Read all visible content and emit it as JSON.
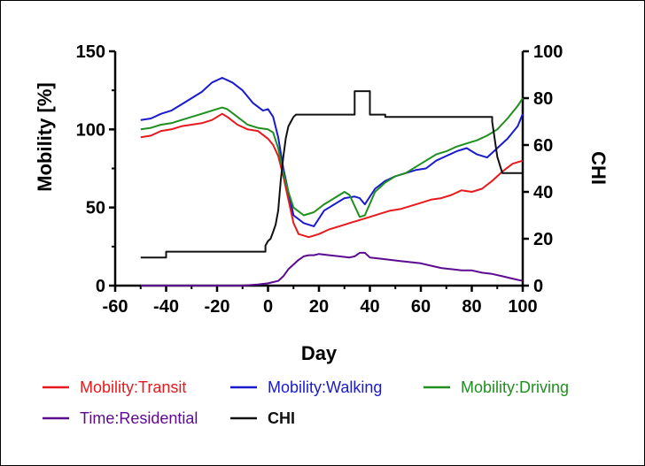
{
  "chart_data": {
    "type": "line",
    "xlabel": "Day",
    "ylabel_left": "Mobility [%]",
    "ylabel_right": "CHI",
    "xlim": [
      -60,
      100
    ],
    "ylim_left": [
      0,
      150
    ],
    "ylim_right": [
      0,
      100
    ],
    "x_ticks": [
      "-60",
      "-40",
      "-20",
      "0",
      "20",
      "40",
      "60",
      "80",
      "100"
    ],
    "y_left_ticks": [
      "0",
      "50",
      "100",
      "150"
    ],
    "y_right_ticks": [
      "0",
      "20",
      "40",
      "60",
      "80",
      "100"
    ],
    "grid": false,
    "legend_position": "bottom",
    "series": [
      {
        "name": "Mobility:Transit",
        "axis": "left",
        "color": "#e8191c",
        "x": [
          -50,
          -46,
          -42,
          -38,
          -34,
          -30,
          -26,
          -22,
          -18,
          -16,
          -12,
          -8,
          -4,
          0,
          2,
          4,
          6,
          8,
          10,
          12,
          16,
          20,
          24,
          28,
          32,
          36,
          40,
          44,
          48,
          52,
          56,
          60,
          64,
          68,
          72,
          76,
          80,
          84,
          88,
          92,
          96,
          100
        ],
        "y": [
          95,
          96,
          99,
          100,
          102,
          103,
          104,
          106,
          110,
          108,
          103,
          100,
          99,
          94,
          90,
          83,
          70,
          55,
          40,
          33,
          31,
          33,
          36,
          38,
          40,
          42,
          44,
          46,
          48,
          49,
          51,
          53,
          55,
          56,
          58,
          61,
          60,
          62,
          67,
          73,
          78,
          80
        ]
      },
      {
        "name": "Mobility:Walking",
        "axis": "left",
        "color": "#1a1acd",
        "x": [
          -50,
          -46,
          -42,
          -38,
          -34,
          -30,
          -26,
          -22,
          -18,
          -14,
          -10,
          -6,
          -2,
          0,
          2,
          4,
          6,
          8,
          10,
          14,
          18,
          22,
          26,
          30,
          34,
          36,
          38,
          42,
          46,
          50,
          54,
          58,
          62,
          66,
          70,
          74,
          78,
          82,
          86,
          90,
          94,
          98,
          100
        ],
        "y": [
          106,
          107,
          110,
          112,
          116,
          120,
          124,
          130,
          133,
          130,
          125,
          117,
          112,
          113,
          108,
          95,
          75,
          60,
          45,
          40,
          38,
          48,
          52,
          56,
          57,
          56,
          52,
          62,
          67,
          70,
          72,
          74,
          75,
          80,
          83,
          86,
          88,
          84,
          82,
          88,
          94,
          102,
          110
        ]
      },
      {
        "name": "Mobility:Driving",
        "axis": "left",
        "color": "#1f8f1f",
        "x": [
          -50,
          -46,
          -42,
          -38,
          -34,
          -30,
          -26,
          -22,
          -18,
          -16,
          -12,
          -8,
          -4,
          0,
          2,
          4,
          6,
          8,
          10,
          14,
          18,
          22,
          26,
          30,
          32,
          36,
          38,
          42,
          46,
          50,
          54,
          58,
          62,
          66,
          70,
          74,
          78,
          82,
          86,
          90,
          94,
          98,
          100
        ],
        "y": [
          100,
          101,
          103,
          104,
          106,
          108,
          110,
          112,
          114,
          113,
          108,
          103,
          101,
          100,
          98,
          88,
          72,
          60,
          50,
          45,
          47,
          52,
          56,
          60,
          58,
          44,
          45,
          60,
          66,
          70,
          72,
          76,
          80,
          84,
          86,
          89,
          91,
          93,
          96,
          100,
          107,
          115,
          120
        ]
      },
      {
        "name": "Time:Residential",
        "axis": "right",
        "color": "#5b0a91",
        "x": [
          -50,
          -10,
          -4,
          0,
          2,
          4,
          6,
          8,
          10,
          12,
          14,
          16,
          18,
          20,
          24,
          28,
          32,
          34,
          36,
          38,
          40,
          44,
          48,
          52,
          56,
          60,
          64,
          68,
          72,
          76,
          80,
          84,
          88,
          92,
          96,
          100
        ],
        "y": [
          0,
          0,
          0.5,
          1,
          1.5,
          2,
          4,
          7,
          9,
          11,
          12.5,
          13,
          13,
          13.5,
          13,
          12.5,
          12,
          12.5,
          14,
          14,
          12,
          11.5,
          11,
          10.5,
          10,
          9.5,
          8.5,
          7.5,
          7,
          6.5,
          6.5,
          5.5,
          5,
          4,
          3,
          2
        ]
      },
      {
        "name": "CHI",
        "axis": "right",
        "color": "#111111",
        "x": [
          -50,
          -40,
          -40,
          -1,
          -1,
          0,
          1,
          2,
          3,
          4,
          5,
          6,
          7,
          8,
          9,
          10,
          11,
          12,
          34,
          34,
          40,
          40,
          46,
          46,
          88,
          88,
          90,
          92,
          96,
          100
        ],
        "y": [
          12,
          12,
          14.5,
          14.5,
          17,
          19,
          20,
          23,
          26,
          32,
          45,
          55,
          63,
          68,
          70,
          72,
          73,
          73,
          73,
          83,
          83,
          73,
          73,
          72,
          72,
          70,
          55,
          48,
          48,
          48
        ]
      }
    ]
  },
  "legend": [
    {
      "label": "Mobility:Transit",
      "color": "#e8191c"
    },
    {
      "label": "Mobility:Walking",
      "color": "#1a1acd"
    },
    {
      "label": "Mobility:Driving",
      "color": "#1f8f1f"
    },
    {
      "label": "Time:Residential",
      "color": "#5b0a91"
    },
    {
      "label": "CHI",
      "color": "#111111"
    }
  ]
}
